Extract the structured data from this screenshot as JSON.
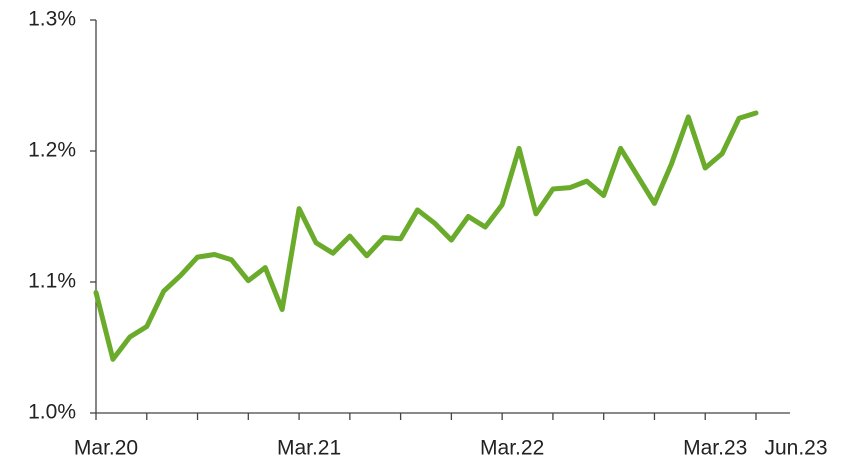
{
  "chart_data": {
    "type": "line",
    "categories": [
      "Mar.20",
      null,
      null,
      null,
      null,
      null,
      null,
      null,
      null,
      null,
      null,
      null,
      "Mar.21",
      null,
      null,
      null,
      null,
      null,
      null,
      null,
      null,
      null,
      null,
      null,
      "Mar.22",
      null,
      null,
      null,
      null,
      null,
      null,
      null,
      null,
      null,
      null,
      null,
      "Mar.23",
      null,
      null,
      "Jun.23"
    ],
    "series": [
      {
        "name": "value",
        "color": "#6aab2b",
        "values": [
          1.092,
          1.041,
          1.058,
          1.066,
          1.093,
          1.105,
          1.119,
          1.121,
          1.117,
          1.101,
          1.111,
          1.079,
          1.156,
          1.13,
          1.122,
          1.135,
          1.12,
          1.134,
          1.133,
          1.155,
          1.145,
          1.132,
          1.15,
          1.142,
          1.159,
          1.202,
          1.152,
          1.171,
          1.172,
          1.177,
          1.166,
          1.202,
          1.181,
          1.16,
          1.19,
          1.226,
          1.187,
          1.198,
          1.225,
          1.229
        ]
      }
    ],
    "ylim": [
      1.0,
      1.3
    ],
    "yticks": [
      {
        "value": 1.0,
        "label": "1.0%"
      },
      {
        "value": 1.1,
        "label": "1.1%"
      },
      {
        "value": 1.2,
        "label": "1.2%"
      },
      {
        "value": 1.3,
        "label": "1.3%"
      }
    ],
    "grid": false
  }
}
